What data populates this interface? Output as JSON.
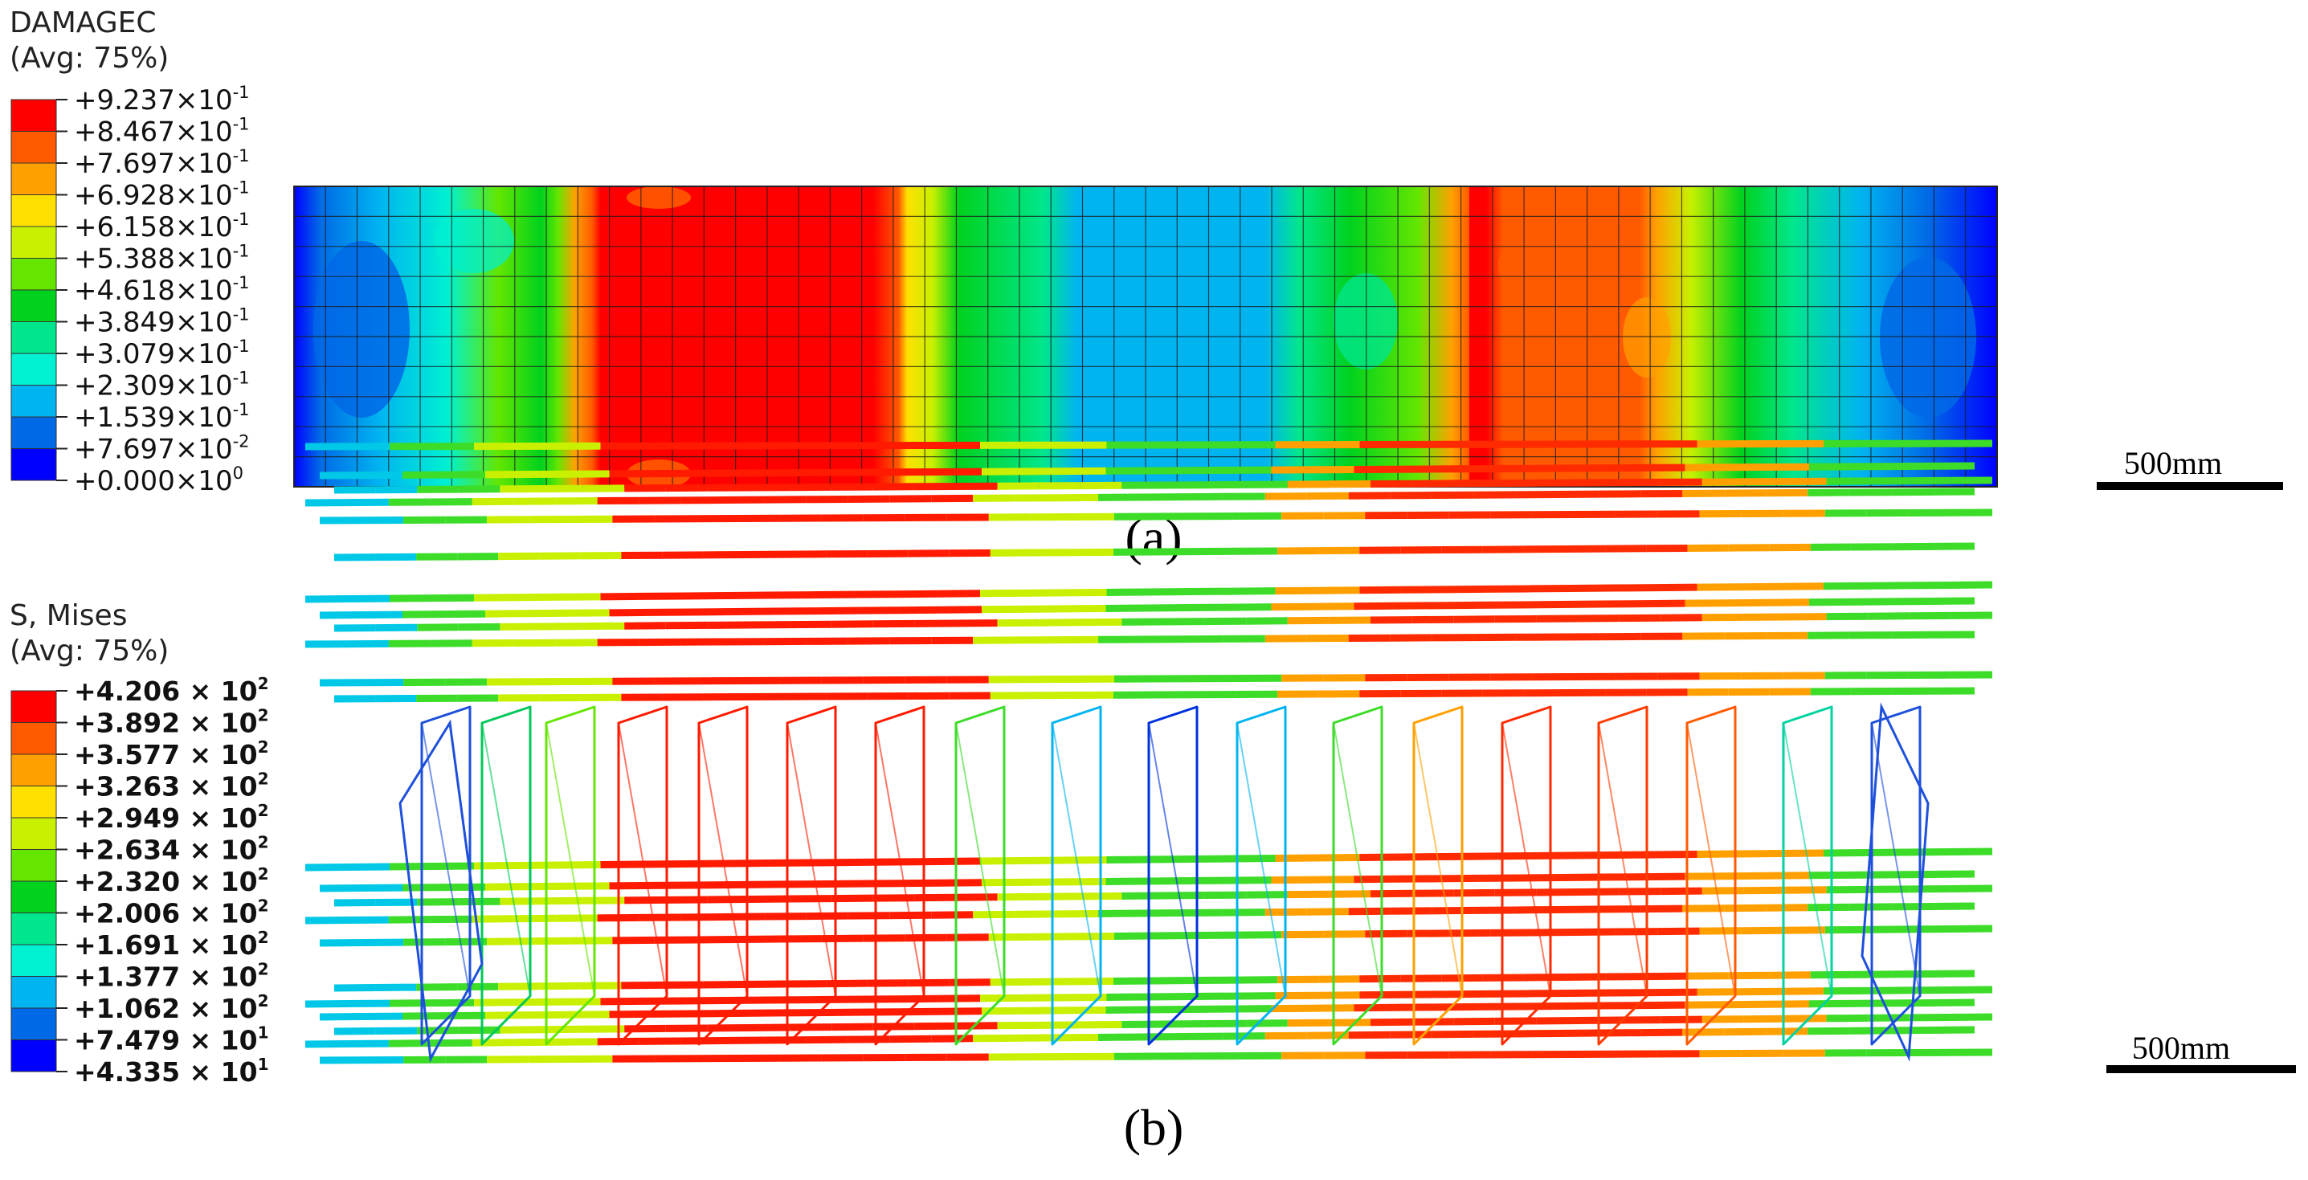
{
  "panel_a": {
    "legend_title_1": "DAMAGEC",
    "legend_title_2": "(Avg: 75%)",
    "legend_labels": [
      "+9.237×10",
      "+8.467×10",
      "+7.697×10",
      "+6.928×10",
      "+6.158×10",
      "+5.388×10",
      "+4.618×10",
      "+3.849×10",
      "+3.079×10",
      "+2.309×10",
      "+1.539×10",
      "+7.697×10",
      "+0.000×10"
    ],
    "legend_exps": [
      "-1",
      "-1",
      "-1",
      "-1",
      "-1",
      "-1",
      "-1",
      "-1",
      "-1",
      "-1",
      "-1",
      "-2",
      "0"
    ],
    "scale_label": "500mm",
    "caption": "(a)"
  },
  "panel_b": {
    "legend_title_1": "S, Mises",
    "legend_title_2": "(Avg: 75%)",
    "legend_labels": [
      "+4.206 × 10",
      "+3.892 × 10",
      "+3.577 × 10",
      "+3.263 × 10",
      "+2.949 × 10",
      "+2.634 × 10",
      "+2.320 × 10",
      "+2.006 × 10",
      "+1.691 × 10",
      "+1.377 × 10",
      "+1.062 × 10",
      "+7.479 × 10",
      "+4.335 × 10"
    ],
    "legend_exps": [
      "2",
      "2",
      "2",
      "2",
      "2",
      "2",
      "2",
      "2",
      "2",
      "2",
      "2",
      "1",
      "1"
    ],
    "scale_label": "500mm",
    "caption": "(b)"
  },
  "colormap": [
    "#ff0000",
    "#ff5a00",
    "#ffa000",
    "#ffe000",
    "#c8f000",
    "#64e600",
    "#00d21e",
    "#00e68c",
    "#00f0d2",
    "#00b4f0",
    "#0069e6",
    "#0000ff"
  ]
}
